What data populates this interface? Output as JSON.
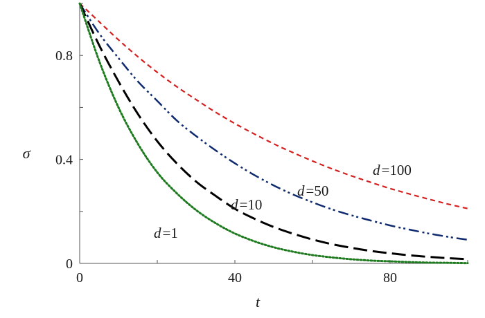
{
  "chart_data": {
    "type": "line",
    "title": "",
    "xlabel": "t",
    "ylabel": "σ",
    "xlim": [
      0,
      100
    ],
    "ylim": [
      0,
      1
    ],
    "xticks": [
      0,
      40,
      80
    ],
    "xtick_labels": [
      "0",
      "40",
      "80"
    ],
    "yticks": [
      0,
      0.4,
      0.8
    ],
    "ytick_labels": [
      "0",
      "0.4",
      "0.8"
    ],
    "grid": false,
    "legend": "none",
    "x": [
      0,
      5,
      10,
      15,
      20,
      25,
      30,
      35,
      40,
      45,
      50,
      55,
      60,
      65,
      70,
      75,
      80,
      85,
      90,
      95,
      100
    ],
    "series": [
      {
        "label_prefix": "d",
        "label_value": "=100",
        "color": "#d41f1f",
        "dash": "short-dash",
        "values": [
          1.0,
          0.93,
          0.86,
          0.795,
          0.735,
          0.68,
          0.63,
          0.582,
          0.538,
          0.498,
          0.46,
          0.426,
          0.394,
          0.364,
          0.337,
          0.312,
          0.288,
          0.267,
          0.247,
          0.228,
          0.211
        ]
      },
      {
        "label_prefix": "d",
        "label_value": "=50",
        "color": "#102a6e",
        "dash": "dash-dot-dot",
        "values": [
          1.0,
          0.885,
          0.79,
          0.7,
          0.625,
          0.55,
          0.49,
          0.435,
          0.385,
          0.34,
          0.3,
          0.265,
          0.235,
          0.208,
          0.185,
          0.165,
          0.146,
          0.13,
          0.115,
          0.102,
          0.091
        ]
      },
      {
        "label_prefix": "d",
        "label_value": "=10",
        "color": "#000000",
        "dash": "long-dash",
        "values": [
          1.0,
          0.84,
          0.7,
          0.575,
          0.47,
          0.385,
          0.315,
          0.26,
          0.21,
          0.172,
          0.14,
          0.114,
          0.092,
          0.074,
          0.06,
          0.048,
          0.039,
          0.031,
          0.025,
          0.02,
          0.016
        ]
      },
      {
        "label_prefix": "d",
        "label_value": "=1",
        "color": "#1e7a1e",
        "dash": "dotted",
        "values": [
          1.0,
          0.78,
          0.6,
          0.46,
          0.35,
          0.27,
          0.205,
          0.155,
          0.115,
          0.085,
          0.062,
          0.045,
          0.032,
          0.023,
          0.016,
          0.011,
          0.008,
          0.005,
          0.003,
          0.002,
          0.001
        ]
      }
    ]
  }
}
